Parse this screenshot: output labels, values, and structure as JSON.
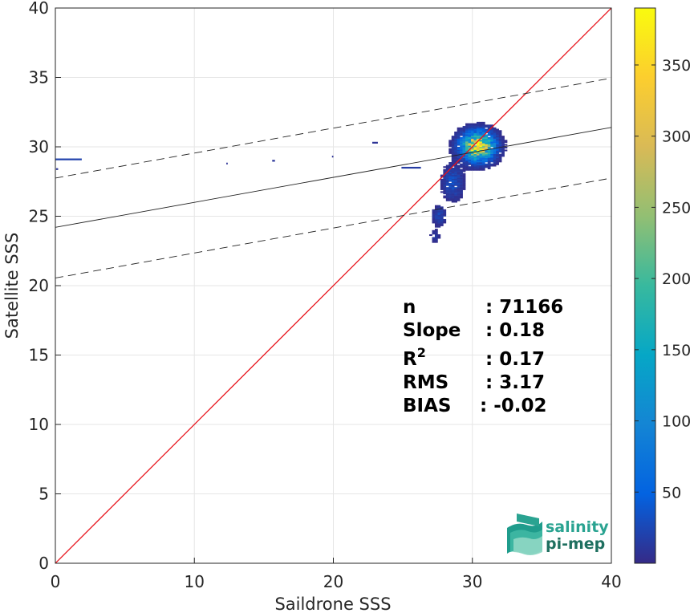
{
  "chart_data": {
    "type": "heatmap",
    "title": "",
    "xlabel": "Saildrone SSS",
    "ylabel": "Satellite SSS",
    "xlim": [
      0,
      40
    ],
    "ylim": [
      0,
      40
    ],
    "xticks": [
      "0",
      "10",
      "20",
      "30",
      "40"
    ],
    "yticks": [
      "0",
      "5",
      "10",
      "15",
      "20",
      "25",
      "30",
      "35",
      "40"
    ],
    "grid": true,
    "colorbar": {
      "range": [
        0,
        390
      ],
      "ticks": [
        "50",
        "100",
        "150",
        "200",
        "250",
        "300",
        "350"
      ],
      "colormap": "parula"
    },
    "lines": [
      {
        "name": "1:1",
        "color": "#e8141c",
        "style": "solid",
        "slope": 1.0,
        "intercept": 0.0
      },
      {
        "name": "fit",
        "color": "#222222",
        "style": "solid",
        "slope": 0.18,
        "intercept": 24.2
      },
      {
        "name": "fit+",
        "color": "#222222",
        "style": "dashed",
        "slope": 0.18,
        "intercept": 27.75
      },
      {
        "name": "fit-",
        "color": "#222222",
        "style": "dashed",
        "slope": 0.18,
        "intercept": 20.55
      }
    ],
    "stats": [
      {
        "label": "n",
        "value": ": 71166"
      },
      {
        "label": "Slope",
        "value": ": 0.18"
      },
      {
        "label": "R2",
        "value": ": 0.17"
      },
      {
        "label": "RMS",
        "value": ": 3.17"
      },
      {
        "label": "BIAS",
        "value": ": -0.02"
      }
    ],
    "density_clusters": [
      {
        "cx": 30.3,
        "cy": 30.0,
        "sx": 1.4,
        "sy": 1.2,
        "peak": 390
      },
      {
        "cx": 28.5,
        "cy": 27.4,
        "sx": 0.9,
        "sy": 1.5,
        "peak": 35
      },
      {
        "cx": 27.5,
        "cy": 25.0,
        "sx": 0.6,
        "sy": 0.9,
        "peak": 25
      },
      {
        "cx": 27.2,
        "cy": 23.5,
        "sx": 0.4,
        "sy": 0.6,
        "peak": 15
      }
    ],
    "sparse_segments": [
      {
        "x0": 0.0,
        "x1": 1.9,
        "y": 29.1,
        "value": 20
      },
      {
        "x0": 0.05,
        "x1": 0.2,
        "y": 28.4,
        "value": 10
      },
      {
        "x0": 15.6,
        "x1": 15.8,
        "y": 29.0,
        "value": 10
      },
      {
        "x0": 12.3,
        "x1": 12.4,
        "y": 28.8,
        "value": 8
      },
      {
        "x0": 19.9,
        "x1": 20.0,
        "y": 29.3,
        "value": 8
      },
      {
        "x0": 22.8,
        "x1": 23.2,
        "y": 30.3,
        "value": 8
      },
      {
        "x0": 24.9,
        "x1": 26.3,
        "y": 28.5,
        "value": 15
      }
    ]
  },
  "logo": {
    "line1": "salinity",
    "line2": "pi-mep"
  }
}
